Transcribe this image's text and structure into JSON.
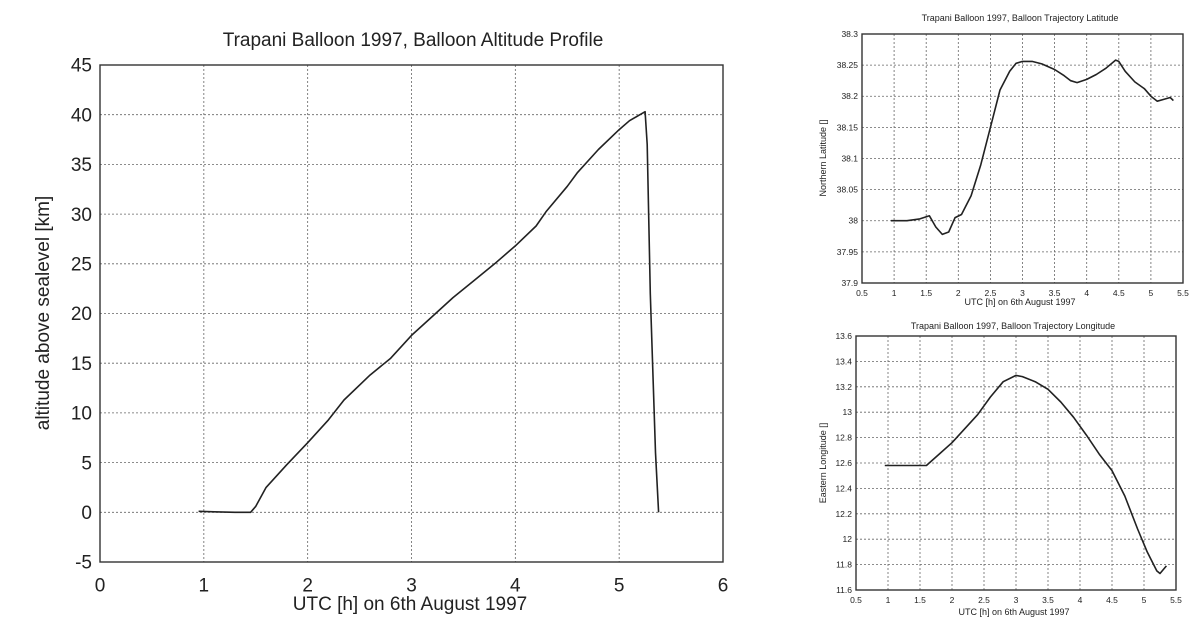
{
  "chart_data": [
    {
      "type": "line",
      "title": "Trapani Balloon 1997, Balloon Altitude Profile",
      "xlabel": "UTC [h] on 6th August 1997",
      "ylabel": "altitude above sealevel [km]",
      "xlim": [
        0,
        6
      ],
      "ylim": [
        -5,
        45
      ],
      "xticks": [
        0,
        1,
        2,
        3,
        4,
        5,
        6
      ],
      "xtick_labels": [
        "0",
        "1",
        "2",
        "3",
        "4",
        "5",
        "6"
      ],
      "yticks": [
        -5,
        0,
        5,
        10,
        15,
        20,
        25,
        30,
        35,
        40,
        45
      ],
      "ytick_labels": [
        "-5",
        "0",
        "5",
        "10",
        "15",
        "20",
        "25",
        "30",
        "35",
        "40",
        "45"
      ],
      "grid": true,
      "series": [
        {
          "x": [
            0.95,
            1.1,
            1.3,
            1.45,
            1.5,
            1.6,
            1.8,
            2.0,
            2.2,
            2.35,
            2.6,
            2.8,
            3.0,
            3.2,
            3.4,
            3.6,
            3.8,
            4.0,
            4.2,
            4.3,
            4.5,
            4.6,
            4.8,
            5.0,
            5.1,
            5.2,
            5.25,
            5.27,
            5.3,
            5.35,
            5.38
          ],
          "y": [
            0.1,
            0.05,
            0.0,
            0.0,
            0.6,
            2.5,
            4.8,
            7.0,
            9.3,
            11.3,
            13.8,
            15.5,
            17.8,
            19.7,
            21.6,
            23.3,
            25.0,
            26.8,
            28.8,
            30.3,
            32.8,
            34.2,
            36.5,
            38.5,
            39.4,
            40.0,
            40.3,
            37.0,
            22.0,
            6.0,
            0.0
          ]
        }
      ]
    },
    {
      "type": "line",
      "title": "Trapani Balloon 1997, Balloon Trajectory Latitude",
      "xlabel": "UTC [h] on 6th August 1997",
      "ylabel": "Northern Latitude []",
      "xlim": [
        0.5,
        5.5
      ],
      "ylim": [
        37.9,
        38.3
      ],
      "xticks": [
        0.5,
        1,
        1.5,
        2,
        2.5,
        3,
        3.5,
        4,
        4.5,
        5,
        5.5
      ],
      "xtick_labels": [
        "0.5",
        "1",
        "1.5",
        "2",
        "2.5",
        "3",
        "3.5",
        "4",
        "4.5",
        "5",
        "5.5"
      ],
      "yticks": [
        37.9,
        37.95,
        38,
        38.05,
        38.1,
        38.15,
        38.2,
        38.25,
        38.3
      ],
      "ytick_labels": [
        "37.9",
        "37.95",
        "38",
        "38.05",
        "38.1",
        "38.15",
        "38.2",
        "38.25",
        "38.3"
      ],
      "grid": true,
      "series": [
        {
          "x": [
            0.95,
            1.2,
            1.4,
            1.55,
            1.65,
            1.75,
            1.85,
            1.95,
            2.05,
            2.2,
            2.35,
            2.5,
            2.65,
            2.8,
            2.9,
            3.0,
            3.15,
            3.3,
            3.5,
            3.65,
            3.75,
            3.85,
            4.0,
            4.15,
            4.3,
            4.45,
            4.5,
            4.6,
            4.75,
            4.9,
            5.0,
            5.1,
            5.2,
            5.3,
            5.35
          ],
          "y": [
            38.0,
            38.0,
            38.003,
            38.008,
            37.99,
            37.978,
            37.982,
            38.005,
            38.01,
            38.04,
            38.09,
            38.15,
            38.21,
            38.24,
            38.253,
            38.256,
            38.256,
            38.252,
            38.243,
            38.233,
            38.225,
            38.222,
            38.227,
            38.235,
            38.245,
            38.258,
            38.256,
            38.24,
            38.223,
            38.212,
            38.2,
            38.192,
            38.195,
            38.198,
            38.193
          ]
        }
      ]
    },
    {
      "type": "line",
      "title": "Trapani Balloon 1997, Balloon Trajectory Longitude",
      "xlabel": "UTC [h] on 6th August 1997",
      "ylabel": "Eastern Longitude []",
      "xlim": [
        0.5,
        5.5
      ],
      "ylim": [
        11.6,
        13.6
      ],
      "xticks": [
        0.5,
        1,
        1.5,
        2,
        2.5,
        3,
        3.5,
        4,
        4.5,
        5,
        5.5
      ],
      "xtick_labels": [
        "0.5",
        "1",
        "1.5",
        "2",
        "2.5",
        "3",
        "3.5",
        "4",
        "4.5",
        "5",
        "5.5"
      ],
      "yticks": [
        11.6,
        11.8,
        12,
        12.2,
        12.4,
        12.6,
        12.8,
        13,
        13.2,
        13.4,
        13.6
      ],
      "ytick_labels": [
        "11.6",
        "11.8",
        "12",
        "12.2",
        "12.4",
        "12.6",
        "12.8",
        "13",
        "13.2",
        "13.4",
        "13.6"
      ],
      "grid": true,
      "series": [
        {
          "x": [
            0.95,
            1.2,
            1.45,
            1.6,
            1.8,
            2.0,
            2.2,
            2.4,
            2.6,
            2.8,
            3.0,
            3.1,
            3.3,
            3.5,
            3.7,
            3.9,
            4.1,
            4.3,
            4.5,
            4.7,
            4.9,
            5.05,
            5.2,
            5.25,
            5.35
          ],
          "y": [
            12.58,
            12.58,
            12.58,
            12.58,
            12.67,
            12.76,
            12.87,
            12.98,
            13.12,
            13.24,
            13.29,
            13.28,
            13.24,
            13.18,
            13.08,
            12.96,
            12.82,
            12.67,
            12.54,
            12.34,
            12.08,
            11.9,
            11.75,
            11.73,
            11.79
          ]
        }
      ]
    }
  ]
}
